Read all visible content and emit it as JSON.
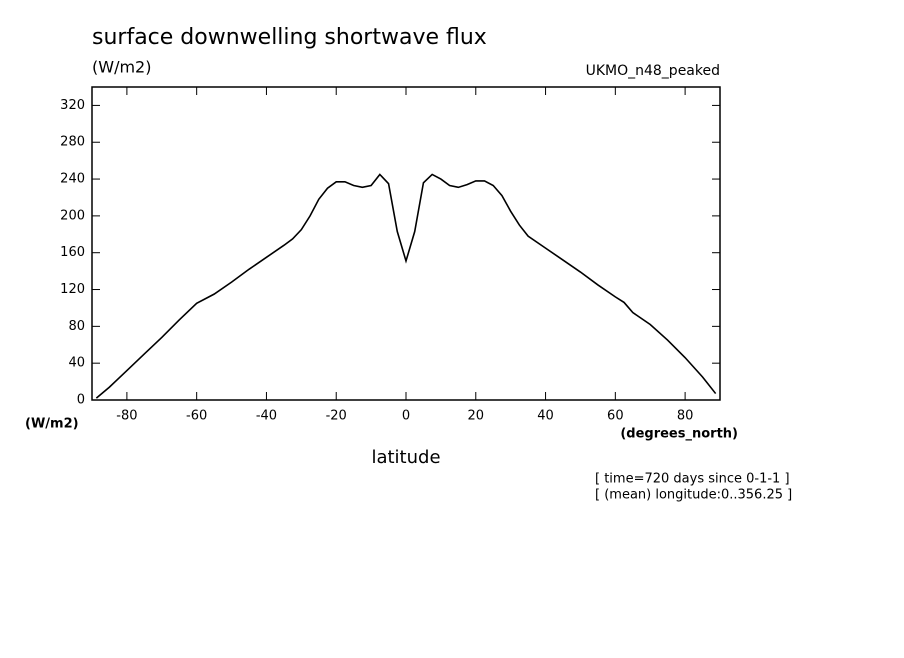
{
  "chart_data": {
    "type": "line",
    "title": "surface downwelling shortwave flux",
    "subtitle": "(W/m2)",
    "dataset": "UKMO_n48_peaked",
    "y_axis_label": "(W/m2)",
    "x_axis_units": "(degrees_north)",
    "x_axis_label": "latitude",
    "annotations": [
      "[ time=720 days since 0-1-1 ]",
      "[ (mean) longitude:0..356.25 ]"
    ],
    "x": [
      -88.75,
      -85,
      -80,
      -75,
      -70,
      -65,
      -60,
      -55,
      -50,
      -45,
      -40,
      -35,
      -32.5,
      -30,
      -27.5,
      -25,
      -22.5,
      -20,
      -17.5,
      -15,
      -12.5,
      -10,
      -7.5,
      -5,
      -2.5,
      0,
      2.5,
      5,
      7.5,
      10,
      12.5,
      15,
      17.5,
      20,
      22.5,
      25,
      27.5,
      30,
      32.5,
      35,
      40,
      45,
      50,
      55,
      60,
      62.5,
      65,
      70,
      75,
      80,
      85,
      88.75
    ],
    "series": [
      {
        "color": "#000000",
        "values": [
          2,
          14,
          32,
          50,
          68,
          87,
          105,
          115,
          128,
          142,
          155,
          168,
          175,
          185,
          200,
          218,
          230,
          237,
          237,
          233,
          231,
          233,
          245,
          235,
          183,
          151,
          183,
          236,
          245,
          240,
          233,
          231,
          234,
          238,
          238,
          233,
          222,
          205,
          190,
          178,
          165,
          152,
          139,
          125,
          112,
          106,
          95,
          82,
          65,
          46,
          25,
          7
        ]
      }
    ],
    "xlim": [
      -90,
      90
    ],
    "xticks": [
      -80,
      -60,
      -40,
      -20,
      0,
      20,
      40,
      60,
      80
    ],
    "ylim": [
      0,
      340
    ],
    "yticks": [
      0,
      40,
      80,
      120,
      160,
      200,
      240,
      280,
      320
    ]
  }
}
